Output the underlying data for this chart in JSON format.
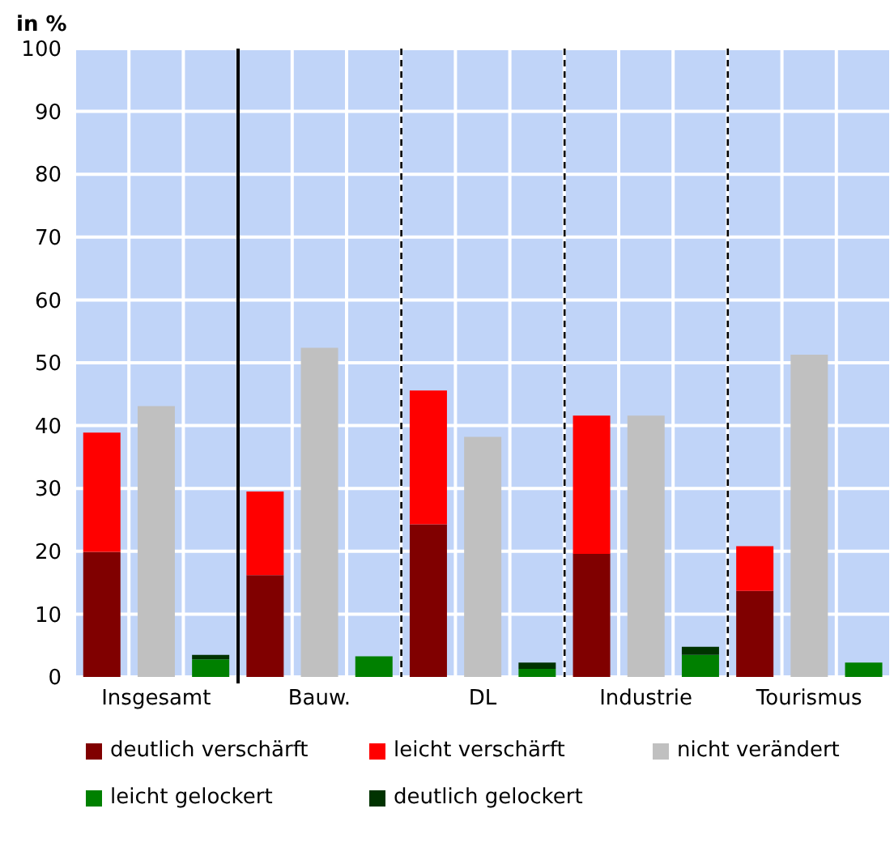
{
  "chart_data": {
    "type": "bar",
    "ylabel": "in %",
    "stacked": true,
    "categories": [
      null,
      "Insgesamt",
      null,
      null,
      "Bauw.",
      null,
      null,
      "DL",
      null,
      null,
      "Industrie",
      null,
      null,
      "Tourismus",
      null
    ],
    "series": [
      {
        "name": "deutlich verschärft",
        "color": "#800000",
        "values": [
          19.9,
          null,
          null,
          16.2,
          null,
          null,
          24.3,
          null,
          null,
          19.6,
          null,
          null,
          13.7,
          null,
          null
        ]
      },
      {
        "name": "leicht verschärft",
        "color": "#ff0000",
        "values": [
          19,
          null,
          null,
          13.3,
          null,
          null,
          21.3,
          null,
          null,
          22,
          null,
          null,
          7.1,
          null,
          null
        ]
      },
      {
        "name": "nicht verändert",
        "color": "#c0c0c0",
        "values": [
          null,
          43.1,
          null,
          null,
          52.4,
          null,
          null,
          38.2,
          null,
          null,
          41.6,
          null,
          null,
          51.3,
          null
        ]
      },
      {
        "name": "leicht gelockert",
        "color": "#008000",
        "values": [
          null,
          null,
          2.8,
          null,
          null,
          3.3,
          null,
          null,
          1.3,
          null,
          null,
          3.5,
          null,
          null,
          2.3
        ]
      },
      {
        "name": "deutlich gelockert",
        "color": "#003300",
        "values": [
          null,
          null,
          0.7,
          null,
          null,
          0,
          null,
          null,
          1,
          null,
          null,
          1.3,
          null,
          null,
          0
        ]
      }
    ],
    "ylim": [
      0,
      100
    ],
    "yticks": [
      0,
      10,
      20,
      30,
      40,
      50,
      60,
      70,
      80,
      90,
      100
    ],
    "grid": true,
    "legend": "bottom"
  }
}
